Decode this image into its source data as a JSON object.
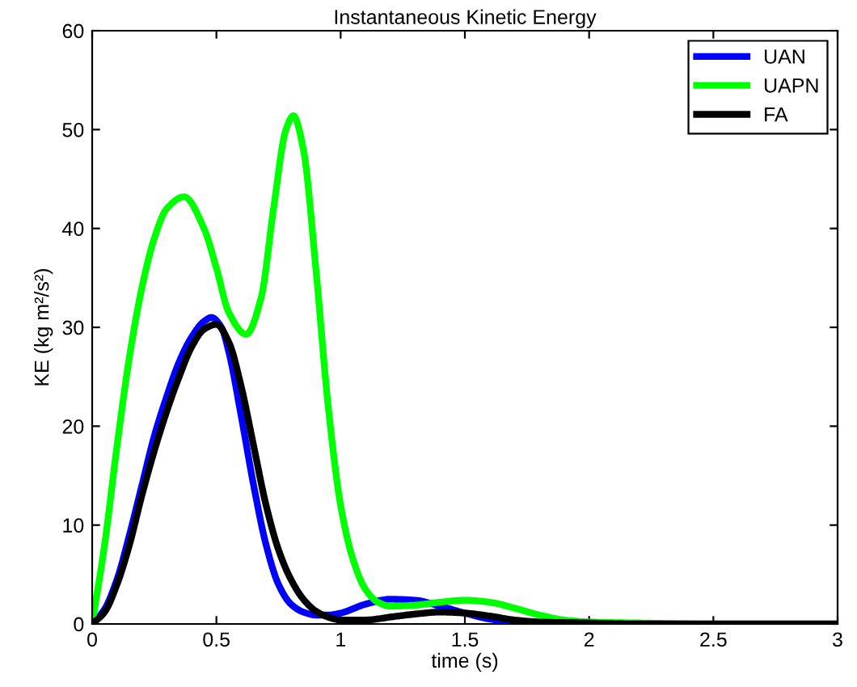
{
  "chart_data": {
    "type": "line",
    "title": "Instantaneous Kinetic Energy",
    "xlabel": "time (s)",
    "ylabel": "KE (kg m²/s²)",
    "xlim": [
      0,
      3
    ],
    "ylim": [
      0,
      60
    ],
    "xticks": [
      0,
      0.5,
      1,
      1.5,
      2,
      2.5,
      3
    ],
    "yticks": [
      0,
      10,
      20,
      30,
      40,
      50,
      60
    ],
    "grid": false,
    "legend": "top right",
    "marker": "none",
    "line_style": "solid",
    "series": [
      {
        "name": "UAN",
        "color": "#0000ff",
        "x": [
          0,
          0.05,
          0.1,
          0.15,
          0.2,
          0.25,
          0.3,
          0.35,
          0.4,
          0.45,
          0.48,
          0.52,
          0.55,
          0.6,
          0.65,
          0.7,
          0.75,
          0.8,
          0.85,
          0.9,
          0.95,
          1.0,
          1.1,
          1.2,
          1.3,
          1.4,
          1.5,
          1.6,
          1.7
        ],
        "values": [
          0,
          1.5,
          4.5,
          9,
          14,
          19,
          23,
          26.5,
          29,
          30.6,
          31,
          30,
          27.5,
          21,
          14,
          8,
          4,
          2,
          1.2,
          0.9,
          0.9,
          1.1,
          2.0,
          2.5,
          2.4,
          1.8,
          1.1,
          0.5,
          0.2
        ]
      },
      {
        "name": "UAPN",
        "color": "#00ff00",
        "x": [
          0,
          0.05,
          0.1,
          0.15,
          0.2,
          0.25,
          0.3,
          0.37,
          0.45,
          0.5,
          0.55,
          0.62,
          0.68,
          0.73,
          0.78,
          0.81,
          0.85,
          0.9,
          0.95,
          1.0,
          1.05,
          1.1,
          1.15,
          1.2,
          1.3,
          1.4,
          1.5,
          1.6,
          1.7,
          1.8,
          1.9,
          2.0,
          2.2,
          2.5,
          3
        ],
        "values": [
          0,
          8,
          18,
          27,
          34,
          39,
          42,
          43.2,
          40,
          36,
          31.5,
          29.3,
          33,
          42,
          50,
          51.4,
          48,
          36,
          22,
          12,
          6.5,
          3.5,
          2.2,
          1.8,
          1.9,
          2.2,
          2.4,
          2.2,
          1.6,
          0.9,
          0.4,
          0.2,
          0.1,
          0,
          0
        ]
      },
      {
        "name": "FA",
        "color": "#000000",
        "x": [
          0,
          0.05,
          0.1,
          0.15,
          0.2,
          0.25,
          0.3,
          0.35,
          0.4,
          0.45,
          0.5,
          0.55,
          0.6,
          0.65,
          0.7,
          0.75,
          0.8,
          0.85,
          0.9,
          0.95,
          1.0,
          1.1,
          1.2,
          1.3,
          1.4,
          1.5,
          1.6,
          1.7,
          1.8,
          2,
          2.2,
          3
        ],
        "values": [
          0,
          1.2,
          4,
          8,
          13,
          17.5,
          21.5,
          25,
          28,
          29.8,
          30.3,
          28.5,
          24,
          18,
          12,
          7.5,
          4.5,
          2.5,
          1.3,
          0.7,
          0.4,
          0.4,
          0.7,
          1.0,
          1.2,
          1.1,
          0.8,
          0.4,
          0.2,
          0.1,
          0,
          0
        ]
      }
    ]
  }
}
